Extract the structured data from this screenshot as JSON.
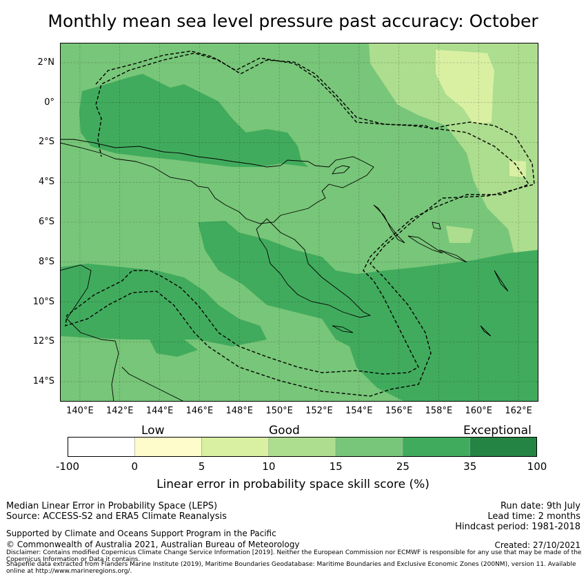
{
  "title": "Monthly mean sea level pressure past accuracy: October",
  "map": {
    "lat_labels": [
      "2°N",
      "0°",
      "2°S",
      "4°S",
      "6°S",
      "8°S",
      "10°S",
      "12°S",
      "14°S"
    ],
    "lon_labels": [
      "140°E",
      "142°E",
      "144°E",
      "146°E",
      "148°E",
      "150°E",
      "152°E",
      "154°E",
      "156°E",
      "158°E",
      "160°E",
      "162°E"
    ],
    "lon_range": [
      139,
      163
    ],
    "lat_range": [
      -15,
      3
    ],
    "colors": {
      "c0_5": "#fffccc",
      "c5_10": "#d9f0a3",
      "c10_15": "#addd8e",
      "c15_25": "#78c679",
      "c25_35": "#41ab5d",
      "c35_100": "#238443"
    }
  },
  "colorbar": {
    "categories": [
      "Low",
      "Good",
      "Exceptional"
    ],
    "ticks": [
      "-100",
      "0",
      "5",
      "10",
      "15",
      "25",
      "35",
      "100"
    ],
    "label": "Linear error in probability space skill score (%)",
    "bins": [
      {
        "from": -100,
        "to": 0,
        "color": "#ffffff"
      },
      {
        "from": 0,
        "to": 5,
        "color": "#fffccc"
      },
      {
        "from": 5,
        "to": 10,
        "color": "#d9f0a3"
      },
      {
        "from": 10,
        "to": 15,
        "color": "#addd8e"
      },
      {
        "from": 15,
        "to": 25,
        "color": "#78c679"
      },
      {
        "from": 25,
        "to": 35,
        "color": "#41ab5d"
      },
      {
        "from": 35,
        "to": 100,
        "color": "#238443"
      }
    ]
  },
  "footer": {
    "method": "Median Linear Error in Probability Space (LEPS)",
    "source": "Source: ACCESS-S2 and ERA5 Climate Reanalysis",
    "run_date": "Run date: 9th July",
    "lead_time": "Lead time: 2 months",
    "hindcast": "Hindcast period: 1981-2018",
    "support": "Supported by Climate and Oceans Support Program in the Pacific",
    "copyright": "© Commonwealth of Australia 2021, Australian Bureau of Meteorology",
    "created": "Created: 27/10/2021",
    "disclaimer": "Disclaimer: Contains modified Copernicus Climate Change Service Information [2019]. Neither the European Commission nor ECMWF is responsible for any use that may be made of the Copernicus Information or Data it contains.",
    "shapefile": "Shapefile data extracted from Flanders Marine Institute (2019), Maritime Boundaries Geodatabase: Maritime Boundaries and Exclusive Economic Zones (200NM), version 11. Available online at http://www.marineregions.org/."
  }
}
